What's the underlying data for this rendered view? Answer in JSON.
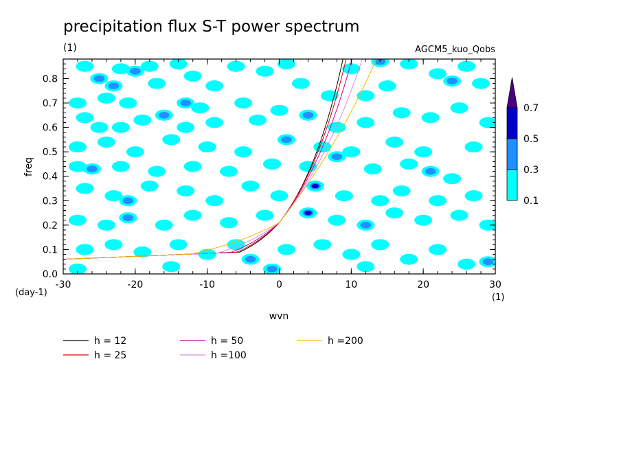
{
  "chart_data": {
    "type": "heatmap",
    "title": "precipitation flux S-T power spectrum",
    "subtitle_left": "(1)",
    "subtitle_right": "AGCM5_kuo_Qobs",
    "xlabel": "wvn",
    "ylabel": "freq",
    "x_unit": "(1)",
    "y_unit": "(day-1)",
    "xlim": [
      -30,
      30
    ],
    "ylim": [
      0,
      0.88
    ],
    "xticks": [
      -30,
      -20,
      -10,
      0,
      10,
      20,
      30
    ],
    "xtick_labels": [
      "-30",
      "-20",
      "-10",
      "0",
      "10",
      "20",
      "30"
    ],
    "yticks": [
      0,
      0.1,
      0.2,
      0.3,
      0.4,
      0.5,
      0.6,
      0.7,
      0.8
    ],
    "ytick_labels": [
      "0.0",
      "0.1",
      "0.2",
      "0.3",
      "0.4",
      "0.5",
      "0.6",
      "0.7",
      "0.8"
    ],
    "contour_levels": [
      0.1,
      0.3,
      0.5,
      0.7
    ],
    "colorbar_labels": [
      "0.1",
      "0.3",
      "0.5",
      "0.7"
    ],
    "colorbar_colors": [
      "#00ffff",
      "#1e90ff",
      "#0000cd",
      "#4b0082"
    ],
    "blobs": [
      {
        "x": -27,
        "y": 0.85,
        "level": 1
      },
      {
        "x": -25,
        "y": 0.8,
        "level": 2
      },
      {
        "x": -22,
        "y": 0.84,
        "level": 1
      },
      {
        "x": -20,
        "y": 0.83,
        "level": 2
      },
      {
        "x": -18,
        "y": 0.85,
        "level": 1
      },
      {
        "x": -28,
        "y": 0.7,
        "level": 1
      },
      {
        "x": -24,
        "y": 0.72,
        "level": 1
      },
      {
        "x": -23,
        "y": 0.77,
        "level": 2
      },
      {
        "x": -21,
        "y": 0.7,
        "level": 1
      },
      {
        "x": -17,
        "y": 0.78,
        "level": 1
      },
      {
        "x": -14,
        "y": 0.86,
        "level": 1
      },
      {
        "x": -12,
        "y": 0.81,
        "level": 1
      },
      {
        "x": -6,
        "y": 0.85,
        "level": 1
      },
      {
        "x": -2,
        "y": 0.83,
        "level": 1
      },
      {
        "x": 1,
        "y": 0.86,
        "level": 1
      },
      {
        "x": 3,
        "y": 0.78,
        "level": 1
      },
      {
        "x": 10,
        "y": 0.84,
        "level": 1
      },
      {
        "x": 14,
        "y": 0.87,
        "level": 2
      },
      {
        "x": 18,
        "y": 0.86,
        "level": 1
      },
      {
        "x": 22,
        "y": 0.82,
        "level": 1
      },
      {
        "x": 26,
        "y": 0.85,
        "level": 1
      },
      {
        "x": 28,
        "y": 0.78,
        "level": 1
      },
      {
        "x": 24,
        "y": 0.79,
        "level": 2
      },
      {
        "x": 15,
        "y": 0.77,
        "level": 1
      },
      {
        "x": 12,
        "y": 0.73,
        "level": 1
      },
      {
        "x": 7,
        "y": 0.73,
        "level": 1
      },
      {
        "x": -9,
        "y": 0.77,
        "level": 1
      },
      {
        "x": -13,
        "y": 0.7,
        "level": 2
      },
      {
        "x": -5,
        "y": 0.7,
        "level": 1
      },
      {
        "x": -11,
        "y": 0.68,
        "level": 1
      },
      {
        "x": -27,
        "y": 0.64,
        "level": 1
      },
      {
        "x": -25,
        "y": 0.6,
        "level": 1
      },
      {
        "x": -22,
        "y": 0.6,
        "level": 1
      },
      {
        "x": -19,
        "y": 0.63,
        "level": 1
      },
      {
        "x": -16,
        "y": 0.65,
        "level": 2
      },
      {
        "x": -13,
        "y": 0.6,
        "level": 1
      },
      {
        "x": -9,
        "y": 0.62,
        "level": 1
      },
      {
        "x": -3,
        "y": 0.63,
        "level": 1
      },
      {
        "x": 0,
        "y": 0.67,
        "level": 1
      },
      {
        "x": 4,
        "y": 0.65,
        "level": 2
      },
      {
        "x": 8,
        "y": 0.6,
        "level": 1
      },
      {
        "x": 12,
        "y": 0.62,
        "level": 1
      },
      {
        "x": 17,
        "y": 0.66,
        "level": 1
      },
      {
        "x": 21,
        "y": 0.64,
        "level": 1
      },
      {
        "x": 25,
        "y": 0.68,
        "level": 1
      },
      {
        "x": 29,
        "y": 0.62,
        "level": 1
      },
      {
        "x": -28,
        "y": 0.52,
        "level": 1
      },
      {
        "x": -24,
        "y": 0.54,
        "level": 1
      },
      {
        "x": -20,
        "y": 0.5,
        "level": 1
      },
      {
        "x": -15,
        "y": 0.55,
        "level": 1
      },
      {
        "x": -10,
        "y": 0.52,
        "level": 1
      },
      {
        "x": -5,
        "y": 0.5,
        "level": 1
      },
      {
        "x": 1,
        "y": 0.55,
        "level": 2
      },
      {
        "x": 6,
        "y": 0.52,
        "level": 1
      },
      {
        "x": 10,
        "y": 0.5,
        "level": 1
      },
      {
        "x": 16,
        "y": 0.54,
        "level": 1
      },
      {
        "x": 20,
        "y": 0.5,
        "level": 1
      },
      {
        "x": 27,
        "y": 0.52,
        "level": 1
      },
      {
        "x": -28,
        "y": 0.44,
        "level": 1
      },
      {
        "x": -26,
        "y": 0.43,
        "level": 2
      },
      {
        "x": -22,
        "y": 0.44,
        "level": 1
      },
      {
        "x": -17,
        "y": 0.42,
        "level": 1
      },
      {
        "x": -12,
        "y": 0.44,
        "level": 1
      },
      {
        "x": -7,
        "y": 0.42,
        "level": 1
      },
      {
        "x": -1,
        "y": 0.45,
        "level": 1
      },
      {
        "x": 4,
        "y": 0.44,
        "level": 1
      },
      {
        "x": 8,
        "y": 0.48,
        "level": 2
      },
      {
        "x": 13,
        "y": 0.43,
        "level": 1
      },
      {
        "x": 18,
        "y": 0.45,
        "level": 1
      },
      {
        "x": 21,
        "y": 0.42,
        "level": 2
      },
      {
        "x": 24,
        "y": 0.39,
        "level": 1
      },
      {
        "x": -27,
        "y": 0.35,
        "level": 1
      },
      {
        "x": -23,
        "y": 0.32,
        "level": 1
      },
      {
        "x": -21,
        "y": 0.3,
        "level": 2
      },
      {
        "x": -18,
        "y": 0.36,
        "level": 1
      },
      {
        "x": -13,
        "y": 0.34,
        "level": 1
      },
      {
        "x": -9,
        "y": 0.3,
        "level": 1
      },
      {
        "x": -4,
        "y": 0.36,
        "level": 1
      },
      {
        "x": 0,
        "y": 0.32,
        "level": 1
      },
      {
        "x": 5,
        "y": 0.36,
        "level": 3
      },
      {
        "x": 9,
        "y": 0.32,
        "level": 1
      },
      {
        "x": 14,
        "y": 0.3,
        "level": 1
      },
      {
        "x": 17,
        "y": 0.34,
        "level": 1
      },
      {
        "x": 22,
        "y": 0.3,
        "level": 1
      },
      {
        "x": 27,
        "y": 0.32,
        "level": 1
      },
      {
        "x": -28,
        "y": 0.22,
        "level": 1
      },
      {
        "x": -24,
        "y": 0.2,
        "level": 1
      },
      {
        "x": -21,
        "y": 0.23,
        "level": 2
      },
      {
        "x": -16,
        "y": 0.2,
        "level": 1
      },
      {
        "x": -12,
        "y": 0.24,
        "level": 1
      },
      {
        "x": -7,
        "y": 0.21,
        "level": 1
      },
      {
        "x": -2,
        "y": 0.24,
        "level": 1
      },
      {
        "x": 4,
        "y": 0.25,
        "level": 3
      },
      {
        "x": 8,
        "y": 0.22,
        "level": 1
      },
      {
        "x": 12,
        "y": 0.2,
        "level": 2
      },
      {
        "x": 16,
        "y": 0.25,
        "level": 1
      },
      {
        "x": 20,
        "y": 0.22,
        "level": 1
      },
      {
        "x": 25,
        "y": 0.24,
        "level": 1
      },
      {
        "x": 29,
        "y": 0.2,
        "level": 1
      },
      {
        "x": -27,
        "y": 0.1,
        "level": 1
      },
      {
        "x": -23,
        "y": 0.12,
        "level": 1
      },
      {
        "x": -19,
        "y": 0.09,
        "level": 1
      },
      {
        "x": -14,
        "y": 0.12,
        "level": 1
      },
      {
        "x": -10,
        "y": 0.08,
        "level": 1
      },
      {
        "x": -6,
        "y": 0.12,
        "level": 1
      },
      {
        "x": -4,
        "y": 0.06,
        "level": 2
      },
      {
        "x": 1,
        "y": 0.1,
        "level": 1
      },
      {
        "x": 6,
        "y": 0.12,
        "level": 1
      },
      {
        "x": 10,
        "y": 0.08,
        "level": 1
      },
      {
        "x": 14,
        "y": 0.12,
        "level": 1
      },
      {
        "x": 18,
        "y": 0.06,
        "level": 1
      },
      {
        "x": 22,
        "y": 0.1,
        "level": 1
      },
      {
        "x": 26,
        "y": 0.04,
        "level": 1
      },
      {
        "x": 29,
        "y": 0.05,
        "level": 2
      },
      {
        "x": -28,
        "y": 0.02,
        "level": 1
      },
      {
        "x": -15,
        "y": 0.03,
        "level": 1
      },
      {
        "x": -1,
        "y": 0.02,
        "level": 2
      },
      {
        "x": 12,
        "y": 0.03,
        "level": 1
      }
    ],
    "series": [
      {
        "name": "h = 12",
        "color": "#000000",
        "h": 12
      },
      {
        "name": "h = 25",
        "color": "#dd0000",
        "h": 25
      },
      {
        "name": "h = 50",
        "color": "#cc00aa",
        "h": 50
      },
      {
        "name": "h =100",
        "color": "#dd88dd",
        "h": 100
      },
      {
        "name": "h =200",
        "color": "#eebb00",
        "h": 200
      }
    ]
  }
}
